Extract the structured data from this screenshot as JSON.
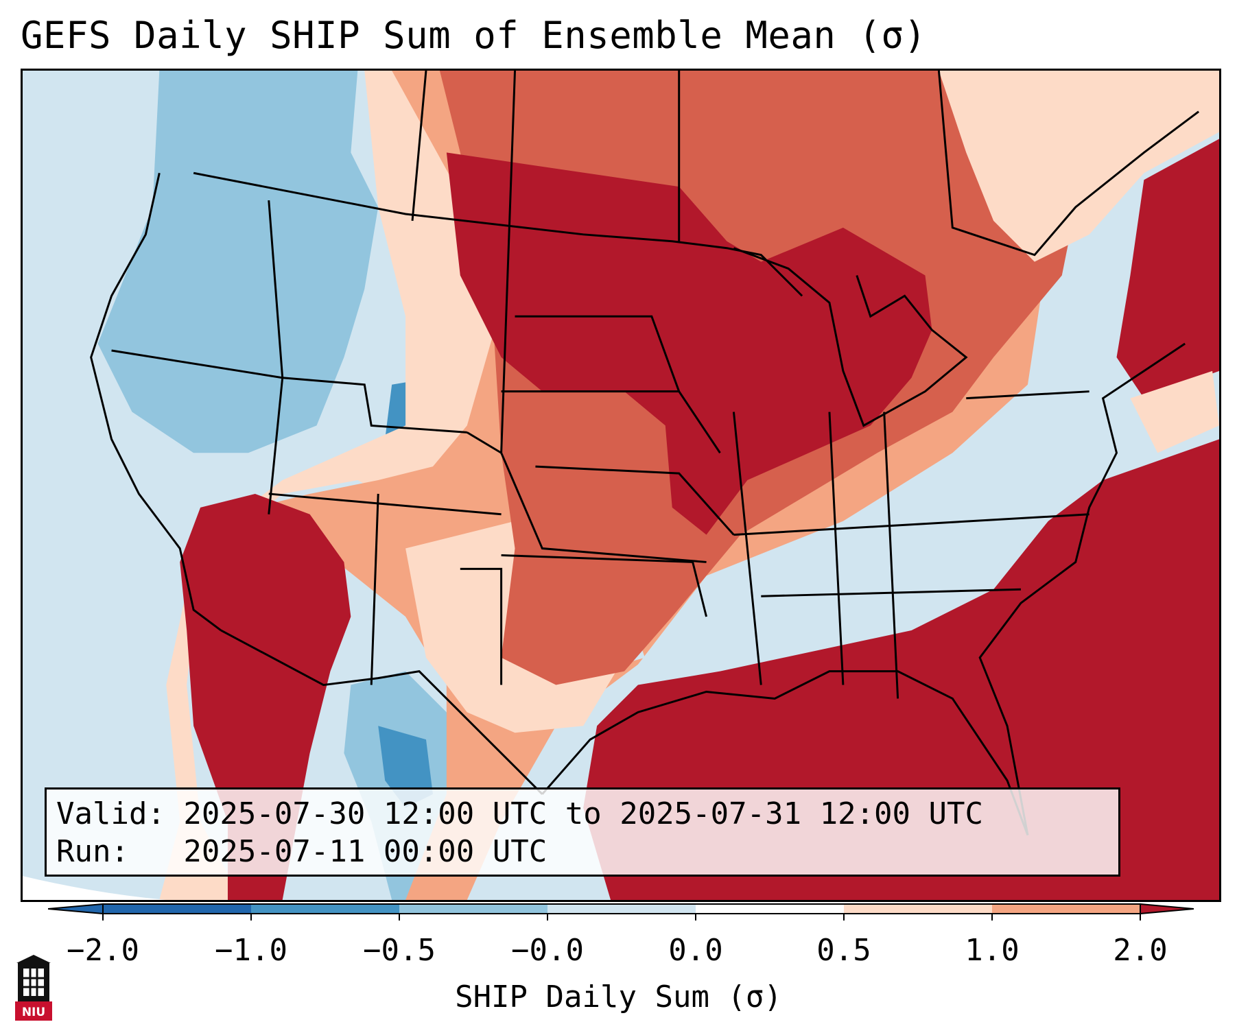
{
  "title": "GEFS Daily SHIP Sum of Ensemble Mean (σ)",
  "info": {
    "valid_line": "Valid: 2025-07-30 12:00 UTC to 2025-07-31 12:00 UTC",
    "run_line": "Run:   2025-07-11 00:00 UTC"
  },
  "colorbar": {
    "label": "SHIP Daily Sum (σ)",
    "ticks": [
      "−2.0",
      "−1.0",
      "−0.5",
      "−0.0",
      "0.0",
      "0.5",
      "1.0",
      "2.0"
    ],
    "colors": [
      "#2166ac",
      "#4393c3",
      "#92c5de",
      "#d1e5f0",
      "#ffffff",
      "#fddbc7",
      "#f4a582",
      "#d6604d",
      "#b2182b"
    ]
  },
  "logo": {
    "text": "NIU",
    "icon": "niu-building-icon"
  }
}
